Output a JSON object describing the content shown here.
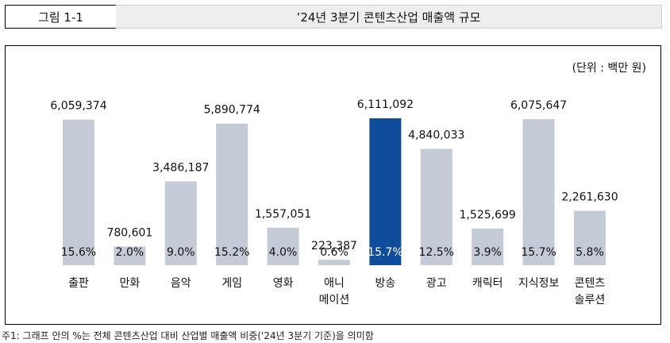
{
  "header": {
    "figure_label": "그림 1-1",
    "title": "’24년 3분기 콘텐츠산업 매출액 규모"
  },
  "unit_label": "(단위 : 백만 원)",
  "footnote": "주1: 그래프 안의 %는 전체 콘텐츠산업 대비 산업별 매출액 비중('24년 3분기 기준)을 의미함",
  "colors": {
    "bar": "#c5cad7",
    "highlight": "#0f4c9c",
    "highlight_text": "#ffffff"
  },
  "chart_data": {
    "type": "bar",
    "categories": [
      [
        "출판"
      ],
      [
        "만화"
      ],
      [
        "음악"
      ],
      [
        "게임"
      ],
      [
        "영화"
      ],
      [
        "애니",
        "메이션"
      ],
      [
        "방송"
      ],
      [
        "광고"
      ],
      [
        "캐릭터"
      ],
      [
        "지식정보"
      ],
      [
        "콘텐츠",
        "솔루션"
      ]
    ],
    "values": [
      6059374,
      780601,
      3486187,
      5890774,
      1557051,
      223387,
      6111092,
      4840033,
      1525699,
      6075647,
      2261630
    ],
    "value_labels": [
      "6,059,374",
      "780,601",
      "3,486,187",
      "5,890,774",
      "1,557,051",
      "223,387",
      "6,111,092",
      "4,840,033",
      "1,525,699",
      "6,075,647",
      "2,261,630"
    ],
    "shares": [
      "15.6%",
      "2.0%",
      "9.0%",
      "15.2%",
      "4.0%",
      "0.6%",
      "15.7%",
      "12.5%",
      "3.9%",
      "15.7%",
      "5.8%"
    ],
    "highlight_index": 6,
    "ylim": [
      0,
      6111092
    ],
    "grid": false
  }
}
